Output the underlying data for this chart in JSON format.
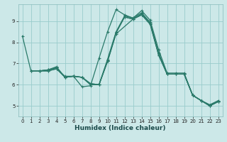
{
  "xlabel": "Humidex (Indice chaleur)",
  "bg_color": "#cce8e8",
  "grid_color": "#99cccc",
  "line_color": "#2a7a6a",
  "xlim": [
    -0.5,
    23.5
  ],
  "ylim": [
    4.5,
    9.8
  ],
  "xticks": [
    0,
    1,
    2,
    3,
    4,
    5,
    6,
    7,
    8,
    9,
    10,
    11,
    12,
    13,
    14,
    15,
    16,
    17,
    18,
    19,
    20,
    21,
    22,
    23
  ],
  "yticks": [
    5,
    6,
    7,
    8,
    9
  ],
  "lines": [
    {
      "x": [
        0,
        1,
        2,
        3,
        4,
        5,
        6,
        7,
        8,
        9,
        10,
        11,
        12,
        13,
        14,
        15,
        16,
        17,
        18,
        19,
        20,
        21,
        22,
        23
      ],
      "y": [
        8.3,
        6.65,
        6.65,
        6.7,
        6.8,
        6.35,
        6.4,
        5.9,
        5.95,
        7.25,
        8.5,
        9.55,
        9.3,
        9.15,
        9.5,
        9.05,
        7.65,
        6.55,
        6.55,
        6.55,
        5.5,
        5.25,
        5.05,
        5.25
      ]
    },
    {
      "x": [
        1,
        2,
        3,
        4,
        5,
        6,
        7,
        8,
        9,
        10,
        11,
        12,
        13,
        14,
        15,
        16,
        17,
        18,
        19,
        20,
        21,
        22,
        23
      ],
      "y": [
        6.65,
        6.65,
        6.7,
        6.85,
        6.35,
        6.4,
        6.35,
        6.05,
        6.0,
        7.2,
        8.5,
        9.25,
        9.15,
        9.4,
        8.95,
        7.5,
        6.5,
        6.5,
        6.5,
        5.5,
        5.25,
        5.05,
        5.2
      ]
    },
    {
      "x": [
        1,
        2,
        3,
        4,
        5,
        6,
        7,
        8,
        9,
        10,
        11,
        12,
        13,
        14,
        15,
        16,
        17,
        18,
        19,
        20,
        21,
        22,
        23
      ],
      "y": [
        6.65,
        6.65,
        6.7,
        6.8,
        6.35,
        6.4,
        6.35,
        6.05,
        6.0,
        7.15,
        8.45,
        9.2,
        9.1,
        9.35,
        8.9,
        7.45,
        6.5,
        6.5,
        6.5,
        5.5,
        5.25,
        5.0,
        5.2
      ]
    },
    {
      "x": [
        2,
        3,
        4,
        5,
        6,
        7,
        8,
        9,
        10,
        11,
        12,
        13,
        14,
        15,
        16,
        17,
        18,
        19,
        20,
        21,
        22,
        23
      ],
      "y": [
        6.65,
        6.65,
        6.75,
        6.4,
        6.4,
        6.35,
        6.0,
        6.0,
        7.1,
        8.45,
        9.2,
        9.1,
        9.3,
        8.9,
        7.4,
        6.5,
        6.5,
        6.5,
        5.5,
        5.25,
        5.0,
        5.2
      ]
    },
    {
      "x": [
        2,
        3,
        4,
        5,
        6,
        7,
        8,
        9,
        10,
        11,
        13,
        14,
        15,
        16,
        17,
        18,
        19,
        20,
        21,
        22,
        23
      ],
      "y": [
        6.65,
        6.65,
        6.75,
        6.35,
        6.4,
        6.35,
        6.0,
        6.0,
        7.1,
        8.4,
        9.1,
        9.3,
        8.85,
        7.4,
        6.5,
        6.5,
        6.5,
        5.5,
        5.25,
        5.0,
        5.2
      ]
    }
  ]
}
